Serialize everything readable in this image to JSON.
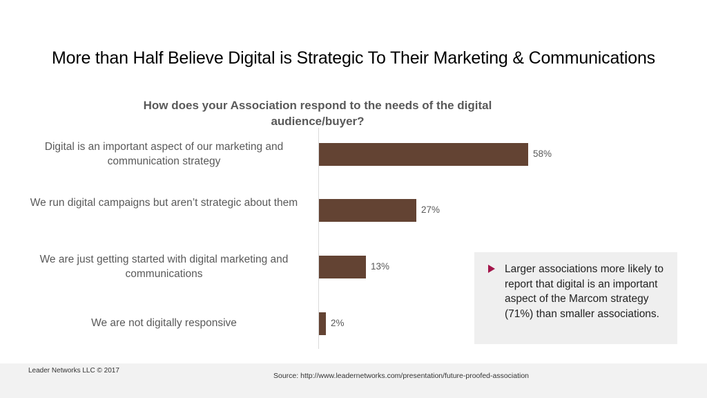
{
  "slide": {
    "title": "More than Half Believe Digital is Strategic To Their Marketing & Communications",
    "footer": {
      "copyright": "Leader Networks LLC © 2017",
      "source": "Source:  http://www.leadernetworks.com/presentation/future-proofed-association"
    },
    "callout": {
      "bullet_icon": "triangle-right-icon",
      "text": "Larger associations more likely to report that digital is an important aspect of the Marcom strategy (71%) than smaller associations."
    },
    "colors": {
      "bar": "#634333",
      "bullet": "#a3154a",
      "callout_bg": "#efefef",
      "footer_bg": "#f2f2f2"
    }
  },
  "chart_data": {
    "type": "bar",
    "orientation": "horizontal",
    "title": "How does your Association respond to the needs of the digital audience/buyer?",
    "categories": [
      "Digital is an important aspect of our marketing and communication strategy",
      "We run digital campaigns but aren’t strategic about them",
      "We are just getting started with digital marketing and communications",
      "We are not digitally responsive"
    ],
    "values": [
      58,
      27,
      13,
      2
    ],
    "labels": [
      "58%",
      "27%",
      "13%",
      "2%"
    ],
    "unit": "%",
    "xlabel": "",
    "ylabel": "",
    "grid": false,
    "legend": null
  }
}
